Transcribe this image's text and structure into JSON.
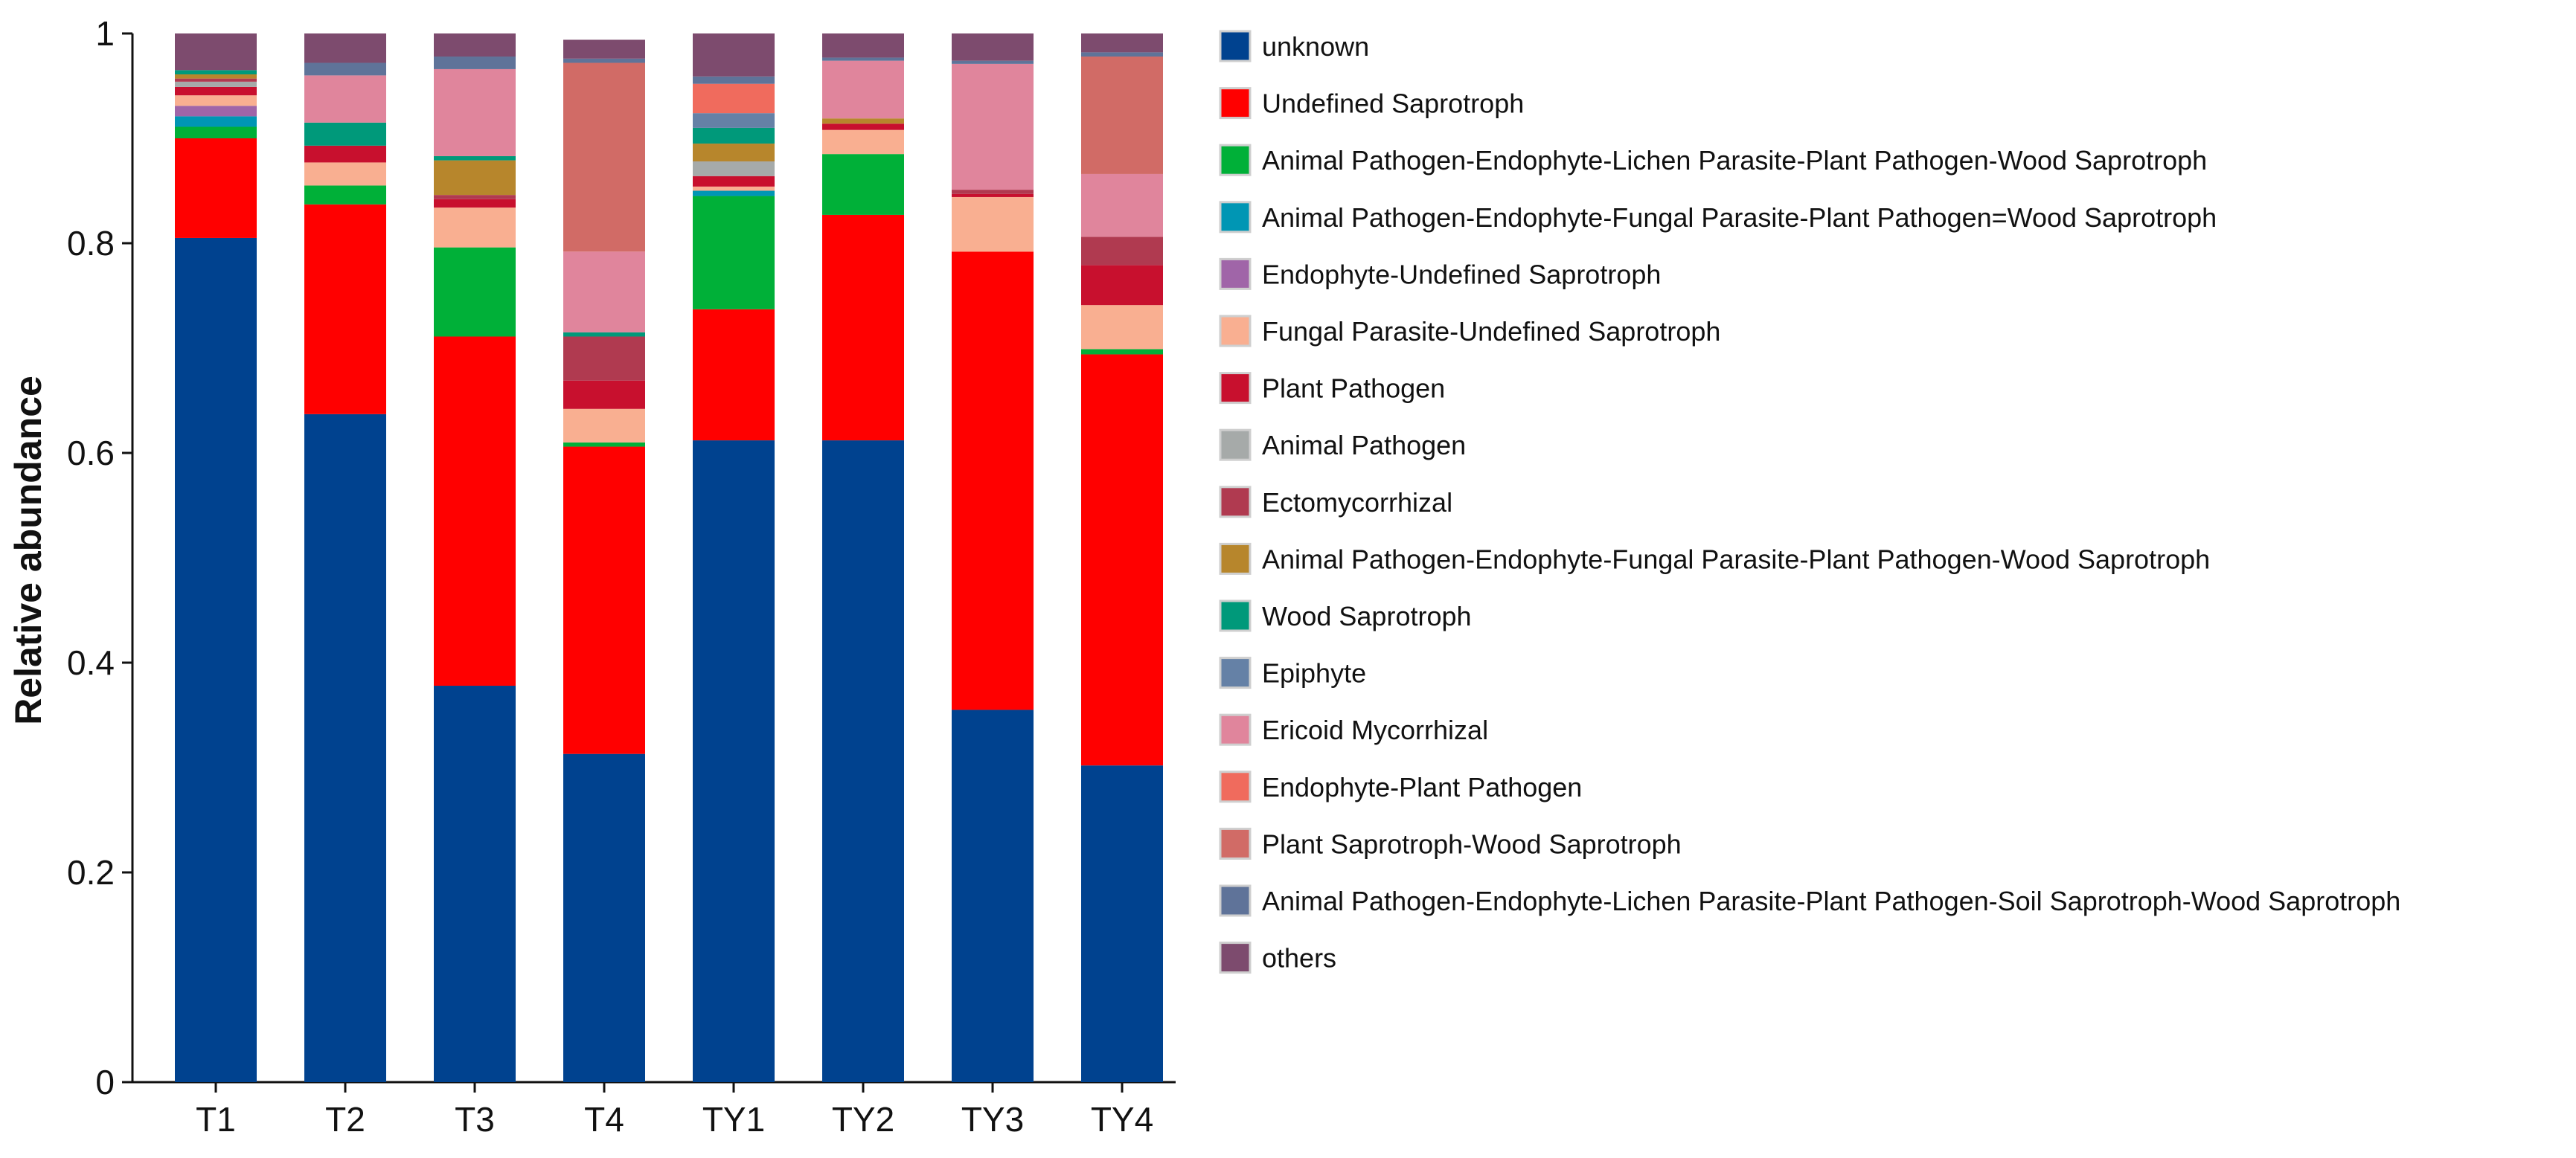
{
  "chart_data": {
    "type": "bar",
    "stacked": true,
    "title": "",
    "xlabel": "",
    "ylabel": "Relative abundance",
    "ylim": [
      0,
      1
    ],
    "yticks": [
      0,
      0.2,
      0.4,
      0.6,
      0.8,
      1
    ],
    "ytick_labels": [
      "0",
      "0.2",
      "0.4",
      "0.6",
      "0.8",
      "1"
    ],
    "categories": [
      "T1",
      "T2",
      "T3",
      "T4",
      "TY1",
      "TY2",
      "TY3",
      "TY4"
    ],
    "legend_position": "right",
    "series": [
      {
        "name": "unknown",
        "color": "#00428f",
        "values": [
          0.805,
          0.637,
          0.378,
          0.313,
          0.612,
          0.612,
          0.355,
          0.302
        ]
      },
      {
        "name": "Undefined Saprotroph",
        "color": "#ff0000",
        "values": [
          0.095,
          0.2,
          0.333,
          0.293,
          0.125,
          0.215,
          0.437,
          0.392
        ]
      },
      {
        "name": "Animal Pathogen-Endophyte-Lichen Parasite-Plant Pathogen-Wood Saprotroph",
        "color": "#00b038",
        "values": [
          0.011,
          0.018,
          0.085,
          0.004,
          0.108,
          0.058,
          0.0,
          0.005
        ]
      },
      {
        "name": "Animal Pathogen-Endophyte-Fungal Parasite-Plant Pathogen=Wood Saprotroph",
        "color": "#0096b4",
        "values": [
          0.01,
          0.0,
          0.0,
          0.0,
          0.005,
          0.0,
          0.0,
          0.0
        ]
      },
      {
        "name": "Endophyte-Undefined Saprotroph",
        "color": "#a065a8",
        "values": [
          0.01,
          0.0,
          0.0,
          0.0,
          0.0,
          0.0,
          0.0,
          0.0
        ]
      },
      {
        "name": "Fungal Parasite-Undefined Saprotroph",
        "color": "#f9af91",
        "values": [
          0.01,
          0.022,
          0.038,
          0.032,
          0.004,
          0.023,
          0.052,
          0.042
        ]
      },
      {
        "name": "Plant Pathogen",
        "color": "#c8102e",
        "values": [
          0.008,
          0.016,
          0.008,
          0.027,
          0.01,
          0.006,
          0.003,
          0.038
        ]
      },
      {
        "name": "Animal Pathogen",
        "color": "#a6aaa9",
        "values": [
          0.005,
          0.0,
          0.0,
          0.0,
          0.014,
          0.0,
          0.0,
          0.0
        ]
      },
      {
        "name": "Ectomycorrhizal",
        "color": "#b03a50",
        "values": [
          0.003,
          0.0,
          0.004,
          0.042,
          0.0,
          0.0,
          0.004,
          0.027
        ]
      },
      {
        "name": "Animal Pathogen-Endophyte-Fungal Parasite-Plant Pathogen-Wood Saprotroph",
        "color": "#b7862c",
        "values": [
          0.004,
          0.0,
          0.033,
          0.0,
          0.017,
          0.005,
          0.0,
          0.0
        ]
      },
      {
        "name": "Wood Saprotroph",
        "color": "#00997a",
        "values": [
          0.004,
          0.022,
          0.004,
          0.004,
          0.015,
          0.0,
          0.0,
          0.0
        ]
      },
      {
        "name": "Epiphyte",
        "color": "#6581a6",
        "values": [
          0.0,
          0.0,
          0.0,
          0.0,
          0.014,
          0.0,
          0.0,
          0.0
        ]
      },
      {
        "name": "Ericoid Mycorrhizal",
        "color": "#e0859c",
        "values": [
          0.0,
          0.045,
          0.083,
          0.077,
          0.0,
          0.055,
          0.12,
          0.06
        ]
      },
      {
        "name": "Endophyte-Plant Pathogen",
        "color": "#f06b5d",
        "values": [
          0.0,
          0.0,
          0.0,
          0.0,
          0.028,
          0.0,
          0.0,
          0.0
        ]
      },
      {
        "name": "Plant Saprotroph-Wood Saprotroph",
        "color": "#d16b66",
        "values": [
          0.0,
          0.0,
          0.0,
          0.18,
          0.0,
          0.0,
          0.0,
          0.112
        ]
      },
      {
        "name": "Animal Pathogen-Endophyte-Lichen Parasite-Plant Pathogen-Soil Saprotroph-Wood Saprotroph",
        "color": "#5f7399",
        "values": [
          0.0,
          0.012,
          0.012,
          0.004,
          0.007,
          0.003,
          0.003,
          0.004
        ]
      },
      {
        "name": "others",
        "color": "#7d4b6e",
        "values": [
          0.035,
          0.028,
          0.022,
          0.018,
          0.041,
          0.023,
          0.026,
          0.018
        ]
      }
    ]
  }
}
